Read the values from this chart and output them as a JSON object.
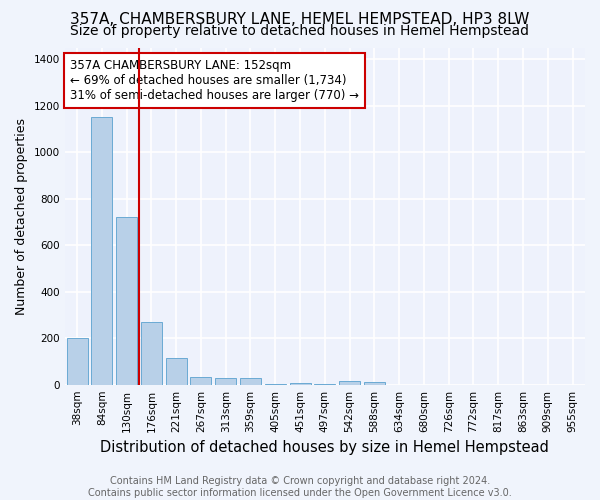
{
  "title": "357A, CHAMBERSBURY LANE, HEMEL HEMPSTEAD, HP3 8LW",
  "subtitle": "Size of property relative to detached houses in Hemel Hempstead",
  "xlabel": "Distribution of detached houses by size in Hemel Hempstead",
  "ylabel": "Number of detached properties",
  "footer_line1": "Contains HM Land Registry data © Crown copyright and database right 2024.",
  "footer_line2": "Contains public sector information licensed under the Open Government Licence v3.0.",
  "categories": [
    "38sqm",
    "84sqm",
    "130sqm",
    "176sqm",
    "221sqm",
    "267sqm",
    "313sqm",
    "359sqm",
    "405sqm",
    "451sqm",
    "497sqm",
    "542sqm",
    "588sqm",
    "634sqm",
    "680sqm",
    "726sqm",
    "772sqm",
    "817sqm",
    "863sqm",
    "909sqm",
    "955sqm"
  ],
  "values": [
    200,
    1150,
    720,
    270,
    115,
    35,
    30,
    30,
    5,
    8,
    5,
    15,
    10,
    0,
    0,
    0,
    0,
    0,
    0,
    0,
    0
  ],
  "bar_color": "#b8d0e8",
  "bar_edge_color": "#6aaad4",
  "background_color": "#f0f4fc",
  "plot_bg_color": "#eef2fc",
  "red_line_x": 2.5,
  "red_line_color": "#cc0000",
  "annotation_text": "357A CHAMBERSBURY LANE: 152sqm\n← 69% of detached houses are smaller (1,734)\n31% of semi-detached houses are larger (770) →",
  "annotation_box_color": "#ffffff",
  "annotation_box_edge": "#cc0000",
  "ylim": [
    0,
    1450
  ],
  "yticks": [
    0,
    200,
    400,
    600,
    800,
    1000,
    1200,
    1400
  ],
  "title_fontsize": 11,
  "subtitle_fontsize": 10,
  "xlabel_fontsize": 10.5,
  "ylabel_fontsize": 9,
  "tick_fontsize": 7.5,
  "annotation_fontsize": 8.5,
  "footer_fontsize": 7
}
